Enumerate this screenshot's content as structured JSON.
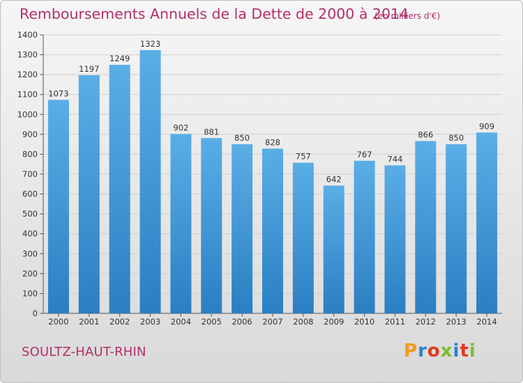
{
  "header": {
    "title": "Remboursements Annuels de la Dette de 2000 à 2014",
    "subtitle": "(en milliers d'€)"
  },
  "footer": {
    "commune": "SOULTZ-HAUT-RHIN",
    "logo": "Proxiti",
    "logo_colors": [
      "#f29a1f",
      "#2d7fd0",
      "#e2371e",
      "#7bbf2a"
    ]
  },
  "colors": {
    "title": "#b0306a",
    "bar_light": "#5aaee6",
    "bar_dark": "#2a7fc3",
    "grid": "#cfcfcf"
  },
  "chart_data": {
    "type": "bar",
    "title": "Remboursements Annuels de la Dette de 2000 à 2014",
    "subtitle": "(en milliers d'€)",
    "categories": [
      "2000",
      "2001",
      "2002",
      "2003",
      "2004",
      "2005",
      "2006",
      "2007",
      "2008",
      "2009",
      "2010",
      "2011",
      "2012",
      "2013",
      "2014"
    ],
    "values": [
      1073,
      1197,
      1249,
      1323,
      902,
      881,
      850,
      828,
      757,
      642,
      767,
      744,
      866,
      850,
      909
    ],
    "ylim": [
      0,
      1400
    ],
    "yticks": [
      0,
      100,
      200,
      300,
      400,
      500,
      600,
      700,
      800,
      900,
      1000,
      1100,
      1200,
      1300,
      1400
    ],
    "grid": true,
    "data_labels": true
  }
}
